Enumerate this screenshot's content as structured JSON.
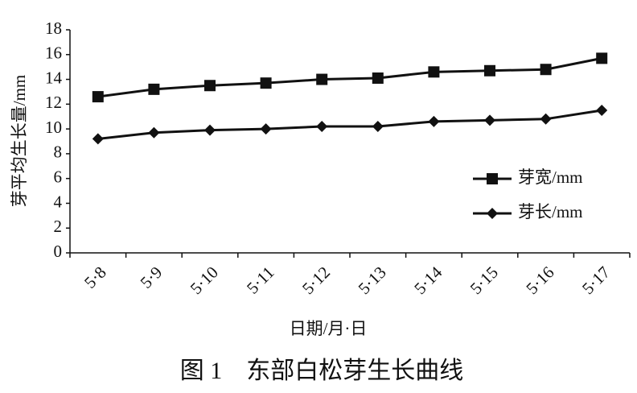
{
  "chart_data": {
    "type": "line",
    "caption": "图 1　东部白松芽生长曲线",
    "x_label": "日期/月·日",
    "y_label": "芽平均生长量/mm",
    "categories": [
      "5·8",
      "5·9",
      "5·10",
      "5·11",
      "5·12",
      "5·13",
      "5·14",
      "5·15",
      "5·16",
      "5·17"
    ],
    "series": [
      {
        "name": "芽宽/mm",
        "color": "#111111",
        "marker": "square",
        "values": [
          12.6,
          13.2,
          13.5,
          13.7,
          14.0,
          14.1,
          14.6,
          14.7,
          14.8,
          15.7
        ]
      },
      {
        "name": "芽长/mm",
        "color": "#111111",
        "marker": "diamond",
        "values": [
          9.2,
          9.7,
          9.9,
          10.0,
          10.2,
          10.2,
          10.6,
          10.7,
          10.8,
          11.5
        ]
      }
    ],
    "ylim": [
      0,
      18
    ],
    "yticks": [
      0,
      2,
      4,
      6,
      8,
      10,
      12,
      14,
      16,
      18
    ],
    "grid": false,
    "legend": "right"
  }
}
